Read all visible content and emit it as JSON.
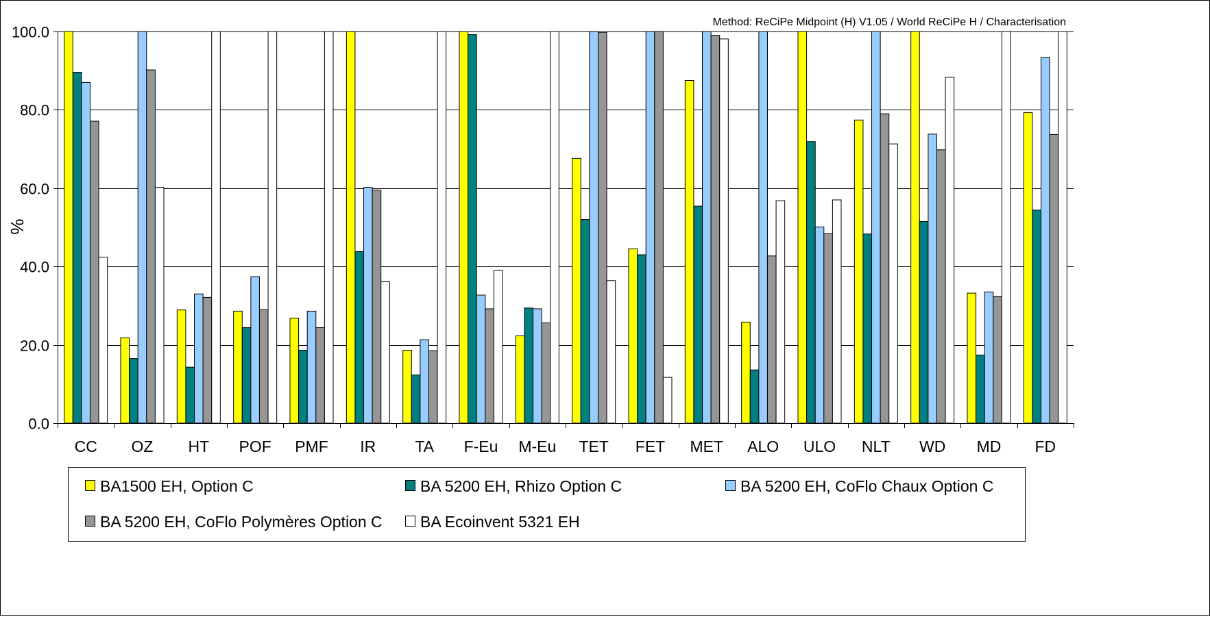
{
  "chart_data": {
    "type": "bar",
    "method_note": "Method: ReCiPe Midpoint (H) V1.05 /  World ReCiPe H / Characterisation",
    "ylabel": "%",
    "xlabel": "",
    "ylim": [
      0,
      100
    ],
    "yticks": [
      "0.0",
      "20.0",
      "40.0",
      "60.0",
      "80.0",
      "100.0"
    ],
    "grid": true,
    "legend_position": "bottom",
    "categories": [
      "CC",
      "OZ",
      "HT",
      "POF",
      "PMF",
      "IR",
      "TA",
      "F-Eu",
      "M-Eu",
      "TET",
      "FET",
      "MET",
      "ALO",
      "ULO",
      "NLT",
      "WD",
      "MD",
      "FD"
    ],
    "series": [
      {
        "name": "BA1500 EH, Option C",
        "color": "#ffff00",
        "values": [
          100,
          21.8,
          28.9,
          28.6,
          26.8,
          100,
          18.6,
          100,
          22.3,
          67.6,
          44.5,
          87.5,
          25.8,
          100,
          77.4,
          100,
          33.2,
          79.3
        ]
      },
      {
        "name": "BA 5200 EH, Rhizo Option C",
        "color": "#008080",
        "values": [
          89.6,
          16.5,
          14.3,
          24.4,
          18.6,
          43.8,
          12.3,
          99.2,
          29.4,
          52.0,
          43.0,
          55.4,
          13.6,
          71.9,
          48.3,
          51.5,
          17.4,
          54.4
        ]
      },
      {
        "name": "BA 5200 EH, CoFlo Chaux Option C",
        "color": "#99ccff",
        "values": [
          87.0,
          100,
          33.0,
          37.4,
          28.6,
          60.2,
          21.3,
          32.7,
          29.2,
          100,
          100,
          100,
          100,
          50.1,
          100,
          73.8,
          33.5,
          93.4
        ]
      },
      {
        "name": "BA 5200 EH, CoFlo Polymères Option C",
        "color": "#969696",
        "values": [
          77.1,
          90.2,
          32.1,
          29.0,
          24.4,
          59.5,
          18.5,
          29.2,
          25.6,
          99.8,
          100,
          99.0,
          42.7,
          48.4,
          79.0,
          69.8,
          32.4,
          73.7
        ]
      },
      {
        "name": "BA Ecoinvent 5321 EH",
        "color": "#ffffff",
        "values": [
          42.4,
          60.2,
          100,
          100,
          100,
          36.1,
          100,
          39.0,
          100,
          36.4,
          11.7,
          98.1,
          56.8,
          57.0,
          71.3,
          88.3,
          100,
          100
        ]
      }
    ]
  }
}
